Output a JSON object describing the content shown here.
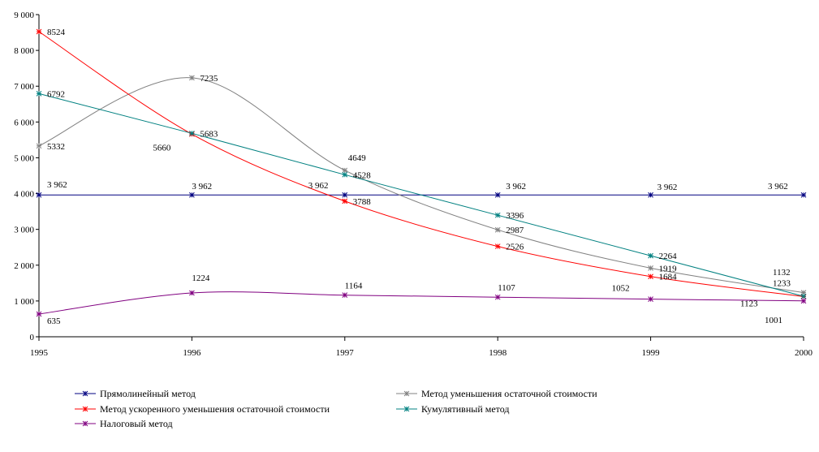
{
  "chart_data": {
    "type": "line",
    "title": "",
    "xlabel": "",
    "ylabel": "",
    "x": [
      1995,
      1996,
      1997,
      1998,
      1999,
      2000
    ],
    "x_tick_labels": [
      "1995",
      "1996",
      "1997",
      "1998",
      "1999",
      "2000"
    ],
    "ylim": [
      0,
      9000
    ],
    "y_ticks": [
      0,
      1000,
      2000,
      3000,
      4000,
      5000,
      6000,
      7000,
      8000,
      9000
    ],
    "y_tick_labels": [
      "0",
      "1 000",
      "2 000",
      "3 000",
      "4 000",
      "5 000",
      "6 000",
      "7 000",
      "8 000",
      "9 000"
    ],
    "grid": false,
    "legend_position": "bottom",
    "series": [
      {
        "name": "Прямолинейный метод",
        "color": "#000080",
        "smooth": false,
        "values": [
          3962,
          3962,
          3962,
          3962,
          3962,
          3962
        ],
        "labels": [
          "3 962",
          "3 962",
          "3 962",
          "3 962",
          "3 962",
          "3 962"
        ]
      },
      {
        "name": "Метод уменьшения остаточной стоимости",
        "color": "#808080",
        "smooth": true,
        "values": [
          5332,
          7235,
          4649,
          2987,
          1919,
          1233
        ],
        "labels": [
          "5332",
          "7235",
          "4649",
          "2987",
          "1919",
          "1233"
        ]
      },
      {
        "name": "Метод ускоренного уменьшения остаточной стоимости",
        "color": "#ff0000",
        "smooth": true,
        "values": [
          8524,
          5660,
          3788,
          2526,
          1684,
          1123
        ],
        "labels": [
          "8524",
          "5660",
          "3788",
          "2526",
          "1684",
          "1123"
        ]
      },
      {
        "name": "Кумулятивный метод",
        "color": "#008080",
        "smooth": false,
        "values": [
          6792,
          5683,
          4528,
          3396,
          2264,
          1132
        ],
        "labels": [
          "6792",
          "5683",
          "4528",
          "3396",
          "2264",
          "1132"
        ]
      },
      {
        "name": "Налоговый метод",
        "color": "#800080",
        "smooth": true,
        "values": [
          635,
          1224,
          1164,
          1107,
          1052,
          1001
        ],
        "labels": [
          "635",
          "1224",
          "1164",
          "1107",
          "1052",
          "1001"
        ]
      }
    ]
  }
}
